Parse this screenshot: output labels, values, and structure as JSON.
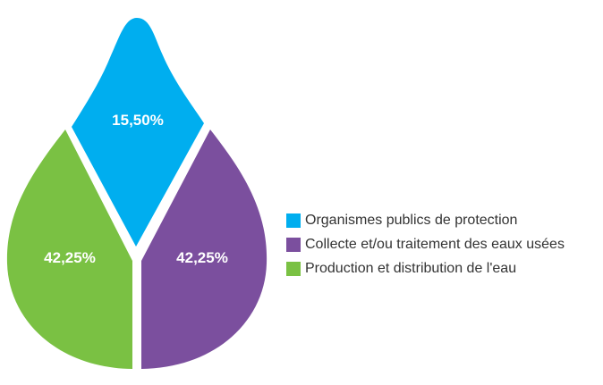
{
  "chart_data": {
    "type": "pie",
    "title": "",
    "series": [
      {
        "name": "Organismes publics de protection",
        "value": 15.5,
        "label": "15,50%",
        "color": "#00AEEF"
      },
      {
        "name": "Collecte et/ou traitement des eaux usées",
        "value": 42.25,
        "label": "42,25%",
        "color": "#7B4F9E"
      },
      {
        "name": "Production et distribution de l'eau",
        "value": 42.25,
        "label": "42,25%",
        "color": "#7AC143"
      }
    ],
    "legend_position": "right"
  }
}
